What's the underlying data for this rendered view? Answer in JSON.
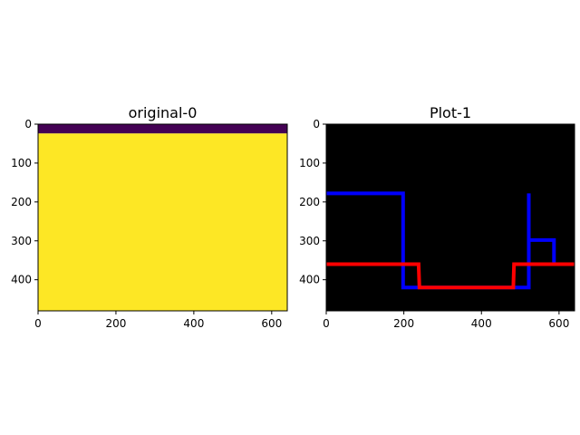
{
  "chart_data": [
    {
      "type": "heatmap",
      "title": "original-0",
      "xlim": [
        0,
        640
      ],
      "ylim": [
        480,
        0
      ],
      "y_axis_inverted": true,
      "xticks": [
        0,
        200,
        400,
        600
      ],
      "yticks": [
        0,
        100,
        200,
        300,
        400
      ],
      "xticklabels": [
        "0",
        "200",
        "400",
        "600"
      ],
      "yticklabels": [
        "0",
        "100",
        "200",
        "300",
        "400"
      ],
      "colormap": "viridis",
      "regions": [
        {
          "name": "top-band",
          "y_start": 0,
          "y_end": 24,
          "color": "#440154"
        },
        {
          "name": "body",
          "y_start": 24,
          "y_end": 480,
          "color": "#fde725"
        }
      ]
    },
    {
      "type": "line",
      "title": "Plot-1",
      "xlim": [
        0,
        640
      ],
      "ylim": [
        480,
        0
      ],
      "y_axis_inverted": true,
      "background": "#000000",
      "xticks": [
        0,
        200,
        400,
        600
      ],
      "yticks": [
        0,
        100,
        200,
        300,
        400
      ],
      "xticklabels": [
        "0",
        "200",
        "400",
        "600"
      ],
      "yticklabels": [
        "0",
        "100",
        "200",
        "300",
        "400"
      ],
      "series": [
        {
          "color": "#0000ff",
          "points": [
            [
              0,
              178
            ],
            [
              198,
              178
            ],
            [
              198,
              420
            ],
            [
              522,
              420
            ],
            [
              522,
              178
            ]
          ]
        },
        {
          "color": "#0000ff",
          "points": [
            [
              522,
              298
            ],
            [
              587,
              298
            ],
            [
              587,
              360
            ]
          ]
        },
        {
          "color": "#ff0000",
          "points": [
            [
              0,
              360
            ],
            [
              238,
              360
            ],
            [
              240,
              420
            ],
            [
              482,
              420
            ],
            [
              484,
              360
            ],
            [
              640,
              360
            ]
          ]
        }
      ]
    }
  ]
}
